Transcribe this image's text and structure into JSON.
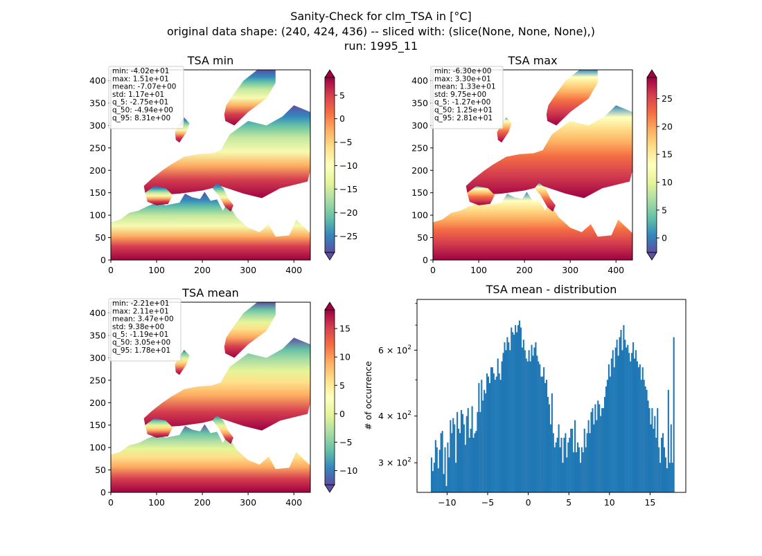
{
  "figure": {
    "title_lines": [
      "Sanity-Check for clm_TSA in [°C]",
      "original data shape: (240, 424, 436) -- sliced with: (slice(None, None, None),)",
      "run: 1995_11"
    ]
  },
  "chart_data": [
    {
      "type": "heatmap",
      "title": "TSA min",
      "colormap": "Spectral_r",
      "x_ticks": [
        0,
        100,
        200,
        300,
        400
      ],
      "y_ticks": [
        0,
        50,
        100,
        150,
        200,
        250,
        300,
        350,
        400
      ],
      "xlim": [
        0,
        436
      ],
      "ylim": [
        0,
        424
      ],
      "colorbar": {
        "range": [
          -28.5,
          8.8
        ],
        "ticks": [
          5,
          0,
          -5,
          -10,
          -15,
          -20,
          -25
        ],
        "tick_labels": [
          "5",
          "0",
          "−5",
          "−10",
          "−15",
          "−20",
          "−25"
        ],
        "extend": "both"
      },
      "stats": [
        "min: -4.02e+01",
        "max: 1.51e+01",
        "mean: -7.07e+00",
        "std: 1.17e+01",
        "q_5: -2.75e+01",
        "q_50: -4.94e+00",
        "q_95: 8.31e+00"
      ]
    },
    {
      "type": "heatmap",
      "title": "TSA max",
      "colormap": "Spectral_r",
      "x_ticks": [
        0,
        100,
        200,
        300,
        400
      ],
      "y_ticks": [
        0,
        50,
        100,
        150,
        200,
        250,
        300,
        350,
        400
      ],
      "xlim": [
        0,
        436
      ],
      "ylim": [
        0,
        424
      ],
      "colorbar": {
        "range": [
          -2.6,
          28.8
        ],
        "ticks": [
          25,
          20,
          15,
          10,
          5,
          0
        ],
        "tick_labels": [
          "25",
          "20",
          "15",
          "10",
          "5",
          "0"
        ],
        "extend": "both"
      },
      "stats": [
        "min: -6.30e+00",
        "max: 3.30e+01",
        "mean: 1.33e+01",
        "std: 9.75e+00",
        "q_5: -1.27e+00",
        "q_50: 1.25e+01",
        "q_95: 2.81e+01"
      ]
    },
    {
      "type": "heatmap",
      "title": "TSA mean",
      "colormap": "Spectral_r",
      "x_ticks": [
        0,
        100,
        200,
        300,
        400
      ],
      "y_ticks": [
        0,
        50,
        100,
        150,
        200,
        250,
        300,
        350,
        400
      ],
      "xlim": [
        0,
        436
      ],
      "ylim": [
        0,
        424
      ],
      "colorbar": {
        "range": [
          -12.5,
          18.3
        ],
        "ticks": [
          15,
          10,
          5,
          0,
          -5,
          -10
        ],
        "tick_labels": [
          "15",
          "10",
          "5",
          "0",
          "−5",
          "−10"
        ],
        "extend": "both"
      },
      "stats": [
        "min: -2.21e+01",
        "max: 2.11e+01",
        "mean: 3.47e+00",
        "std: 9.38e+00",
        "q_5: -1.19e+01",
        "q_50: 3.05e+00",
        "q_95: 1.78e+01"
      ]
    },
    {
      "type": "bar",
      "title": "TSA mean - distribution",
      "ylabel": "# of occurrence",
      "yscale": "log",
      "xlim": [
        -13.7,
        19.4
      ],
      "ylim": [
        250,
        820
      ],
      "x_ticks": [
        -10,
        -5,
        0,
        5,
        10,
        15
      ],
      "x_tick_labels": [
        "−10",
        "−5",
        "0",
        "5",
        "10",
        "15"
      ],
      "y_major_ticks": [
        300,
        400,
        600
      ],
      "y_major_labels": [
        [
          "3",
          "2"
        ],
        [
          "4",
          "2"
        ],
        [
          "6",
          "2"
        ]
      ],
      "y_minor_ticks": [
        500,
        700,
        800
      ],
      "bar_color": "#1f77b4",
      "bin_range": [
        -12,
        18
      ],
      "values": [
        310,
        285,
        300,
        345,
        330,
        290,
        325,
        360,
        365,
        280,
        330,
        260,
        340,
        310,
        390,
        360,
        395,
        380,
        300,
        410,
        370,
        360,
        415,
        405,
        380,
        335,
        400,
        420,
        350,
        370,
        425,
        350,
        360,
        365,
        410,
        490,
        410,
        500,
        440,
        470,
        460,
        520,
        510,
        490,
        540,
        540,
        520,
        500,
        510,
        570,
        520,
        500,
        560,
        590,
        630,
        600,
        650,
        630,
        600,
        690,
        670,
        660,
        700,
        670,
        700,
        720,
        690,
        610,
        640,
        600,
        570,
        560,
        600,
        560,
        620,
        580,
        610,
        630,
        580,
        560,
        550,
        510,
        510,
        540,
        490,
        500,
        450,
        430,
        380,
        460,
        360,
        330,
        340,
        350,
        380,
        330,
        350,
        300,
        350,
        360,
        310,
        340,
        350,
        370,
        370,
        320,
        390,
        320,
        340,
        330,
        300,
        330,
        320,
        370,
        330,
        360,
        390,
        360,
        410,
        420,
        380,
        430,
        390,
        440,
        430,
        400,
        420,
        420,
        450,
        480,
        500,
        550,
        510,
        570,
        600,
        540,
        610,
        640,
        580,
        650,
        680,
        600,
        700,
        640,
        610,
        620,
        590,
        560,
        590,
        630,
        570,
        600,
        560,
        540,
        550,
        500,
        540,
        500,
        480,
        470,
        440,
        420,
        380,
        420,
        370,
        400,
        350,
        420,
        330,
        300,
        350,
        360,
        330,
        310,
        290,
        470,
        300,
        380,
        300,
        650
      ]
    }
  ]
}
